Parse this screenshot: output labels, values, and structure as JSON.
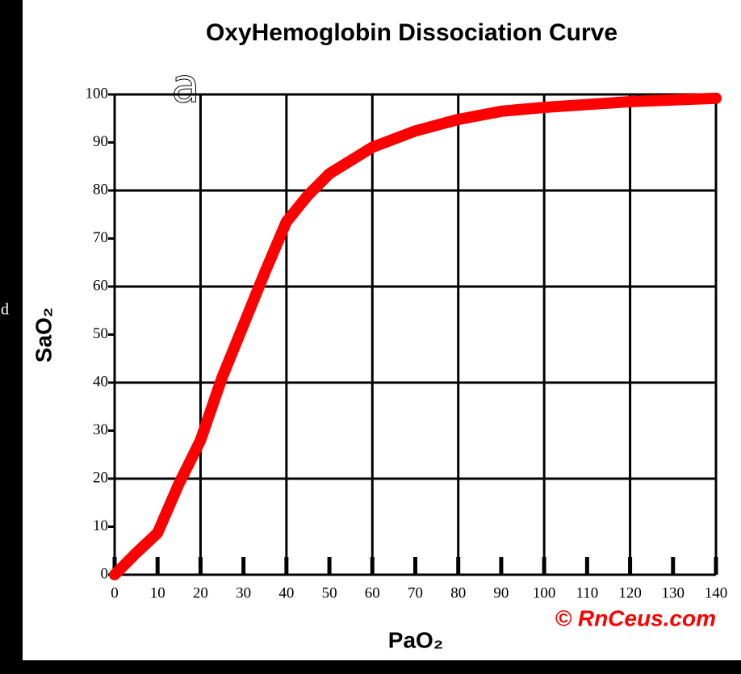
{
  "chart_data": {
    "type": "line",
    "title": "OxyHemoglobin Dissociation Curve",
    "x_label": "PaO₂",
    "y_label": "SaO₂",
    "credit": "© RnCeus.com",
    "fragments": [
      "a",
      "d"
    ],
    "x": [
      0,
      5,
      10,
      15,
      20,
      25,
      30,
      35,
      40,
      45,
      50,
      60,
      70,
      80,
      90,
      100,
      120,
      140
    ],
    "series": [
      {
        "name": "SaO₂",
        "color": "#ff0000",
        "values": [
          0,
          4.5,
          8.7,
          19,
          28,
          41,
          52,
          63,
          73.5,
          79,
          83.5,
          89,
          92.4,
          94.8,
          96.5,
          97.3,
          98.5,
          99.2
        ]
      }
    ],
    "xlim": [
      0,
      140
    ],
    "ylim": [
      0,
      100
    ],
    "xticks": [
      0,
      10,
      20,
      30,
      40,
      50,
      60,
      70,
      80,
      90,
      100,
      110,
      120,
      130,
      140
    ],
    "yticks": [
      0,
      10,
      20,
      30,
      40,
      50,
      60,
      70,
      80,
      90,
      100
    ],
    "grid": true
  }
}
